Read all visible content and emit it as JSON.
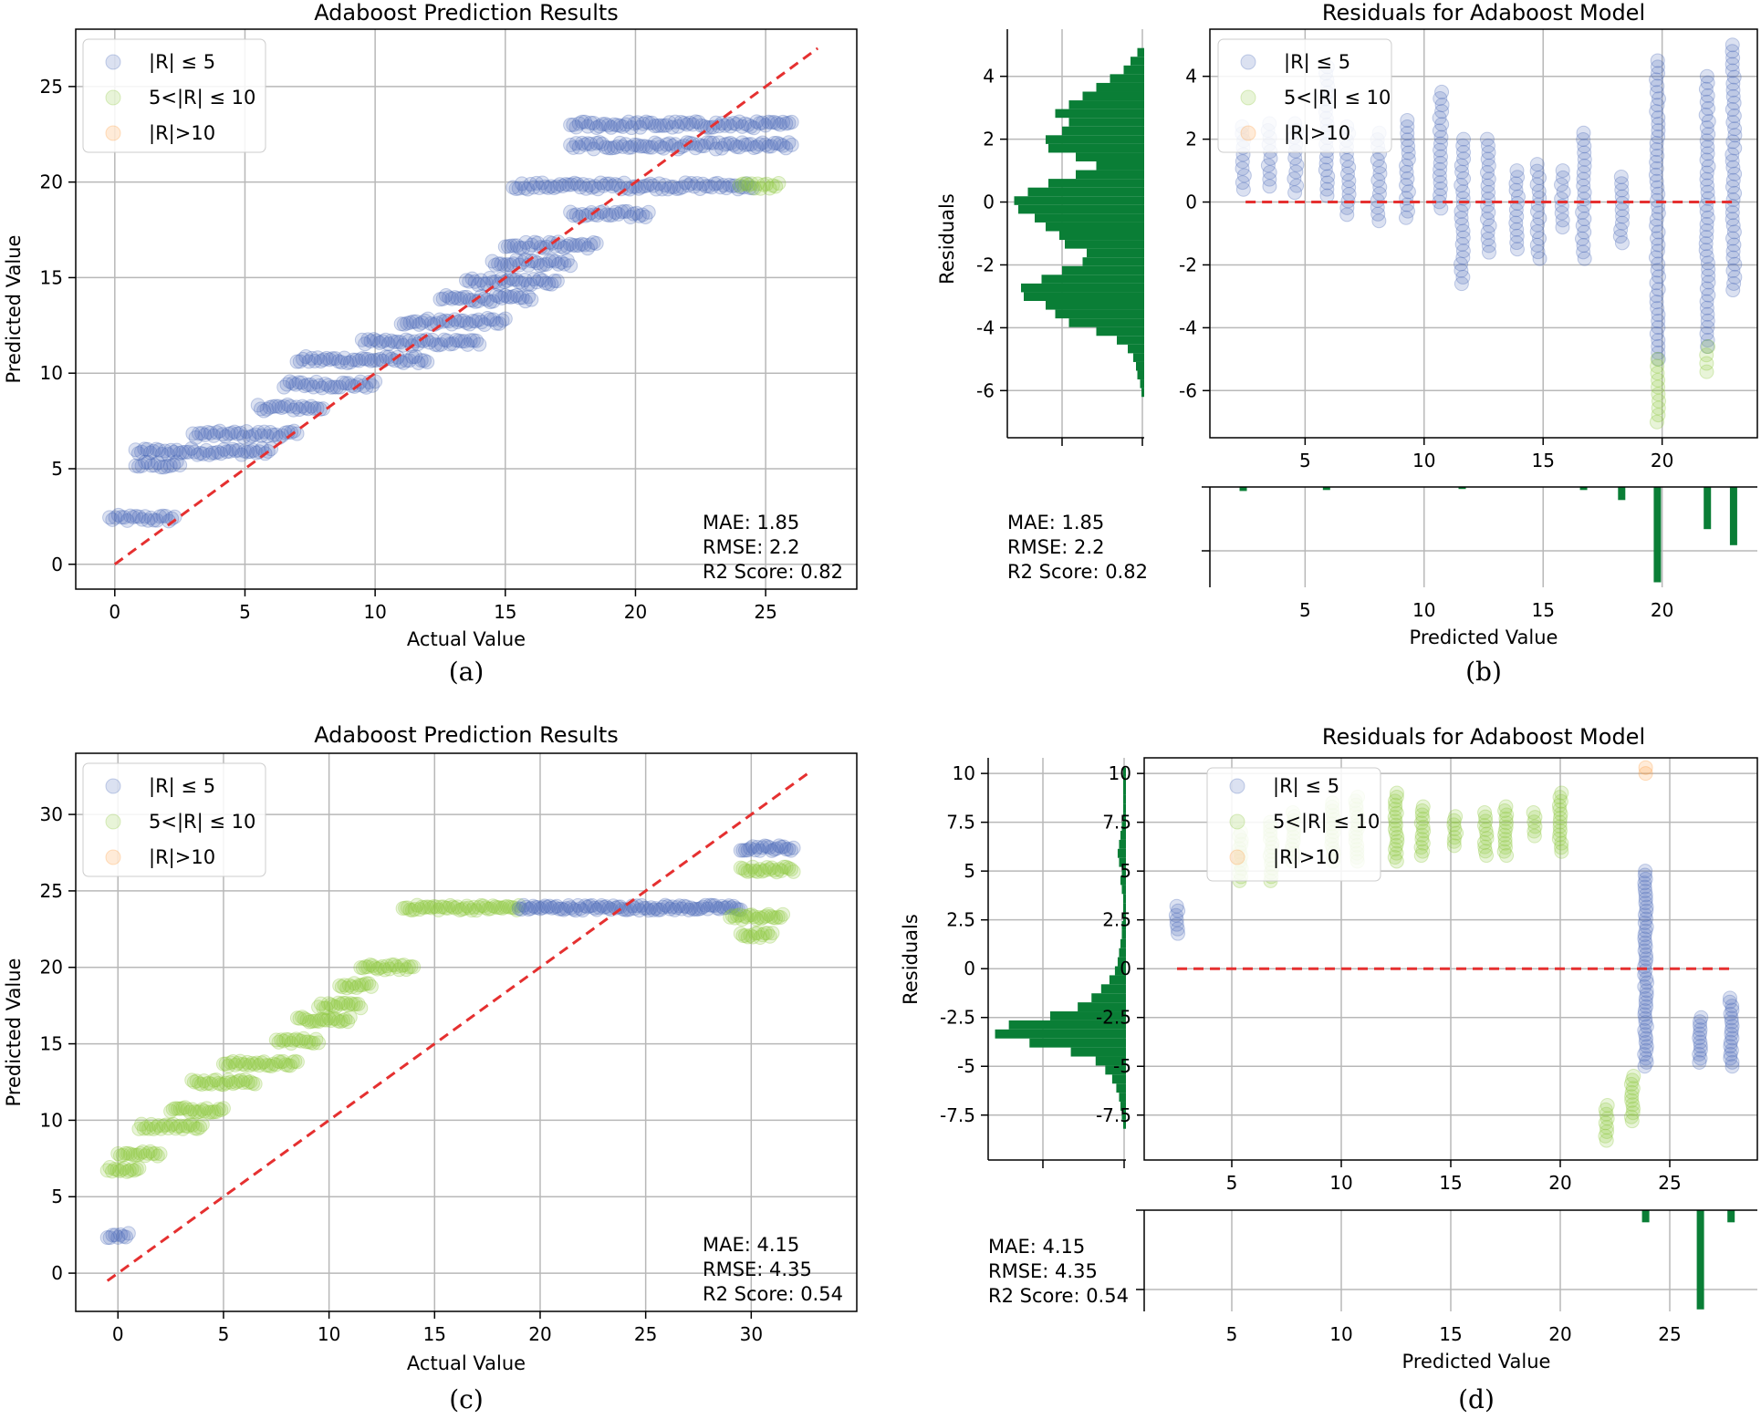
{
  "colors": {
    "low": "#4a6ab8",
    "mid": "#8cc83c",
    "high": "#ff9b3b",
    "ideal": "#e53030",
    "hist": "#0a7e36",
    "grid": "#b8b8b8"
  },
  "legend": [
    "|R| ≤ 5",
    "5<|R| ≤ 10",
    "|R|>10"
  ],
  "panels": [
    {
      "caption": "(a)",
      "title": "Adaboost Prediction Results",
      "xlabel": "Actual Value",
      "ylabel": "Predicted Value",
      "metrics": [
        "MAE: 1.85",
        "RMSE: 2.2",
        "R2 Score: 0.82"
      ]
    },
    {
      "caption": "(b)",
      "title": "Residuals for Adaboost Model",
      "xlabel": "Predicted Value",
      "ylabel": "Residuals",
      "metrics": [
        "MAE: 1.85",
        "RMSE: 2.2",
        "R2 Score: 0.82"
      ]
    },
    {
      "caption": "(c)",
      "title": "Adaboost Prediction Results",
      "xlabel": "Actual Value",
      "ylabel": "Predicted Value",
      "metrics": [
        "MAE: 4.15",
        "RMSE: 4.35",
        "R2 Score: 0.54"
      ]
    },
    {
      "caption": "(d)",
      "title": "Residuals for Adaboost Model",
      "xlabel": "Predicted Value",
      "ylabel": "Residuals",
      "metrics": [
        "MAE: 4.15",
        "RMSE: 4.35",
        "R2 Score: 0.54"
      ]
    }
  ],
  "chart_data": [
    {
      "type": "scatter",
      "title": "Adaboost Prediction Results",
      "xlabel": "Actual Value",
      "ylabel": "Predicted Value",
      "xlim": [
        -1.5,
        28.5
      ],
      "ylim": [
        -1.3,
        28
      ],
      "xticks": [
        0,
        5,
        10,
        15,
        20,
        25
      ],
      "yticks": [
        0,
        5,
        10,
        15,
        20,
        25
      ],
      "ideal_line": [
        [
          0,
          0
        ],
        [
          27,
          27
        ]
      ],
      "clusters": [
        {
          "x0": -0.2,
          "x1": 2.3,
          "y": 2.4,
          "cat": "low"
        },
        {
          "x0": 0.8,
          "x1": 2.5,
          "y": 5.2,
          "cat": "low"
        },
        {
          "x0": 0.8,
          "x1": 6.0,
          "y": 5.9,
          "cat": "low"
        },
        {
          "x0": 3.0,
          "x1": 7.0,
          "y": 6.8,
          "cat": "low"
        },
        {
          "x0": 5.5,
          "x1": 8.0,
          "y": 8.2,
          "cat": "low"
        },
        {
          "x0": 6.5,
          "x1": 10.0,
          "y": 9.4,
          "cat": "low"
        },
        {
          "x0": 7.0,
          "x1": 12.0,
          "y": 10.7,
          "cat": "low"
        },
        {
          "x0": 9.5,
          "x1": 14.0,
          "y": 11.6,
          "cat": "low"
        },
        {
          "x0": 11.0,
          "x1": 15.0,
          "y": 12.7,
          "cat": "low"
        },
        {
          "x0": 12.5,
          "x1": 16.0,
          "y": 13.9,
          "cat": "low"
        },
        {
          "x0": 13.5,
          "x1": 17.0,
          "y": 14.8,
          "cat": "low"
        },
        {
          "x0": 14.5,
          "x1": 17.5,
          "y": 15.8,
          "cat": "low"
        },
        {
          "x0": 15.0,
          "x1": 18.5,
          "y": 16.7,
          "cat": "low"
        },
        {
          "x0": 17.5,
          "x1": 20.5,
          "y": 18.3,
          "cat": "low"
        },
        {
          "x0": 15.3,
          "x1": 24.5,
          "y": 19.8,
          "cat": "low"
        },
        {
          "x0": 24.0,
          "x1": 25.5,
          "y": 19.8,
          "cat": "mid"
        },
        {
          "x0": 17.5,
          "x1": 26.0,
          "y": 21.9,
          "cat": "low"
        },
        {
          "x0": 17.5,
          "x1": 26.0,
          "y": 23.0,
          "cat": "low"
        }
      ]
    },
    {
      "type": "scatter+histogram",
      "title": "Residuals for Adaboost Model",
      "xlabel": "Predicted Value",
      "ylabel": "Residuals",
      "xlim": [
        1.0,
        24.0
      ],
      "ylim": [
        -7.5,
        5.5
      ],
      "xticks": [
        5,
        10,
        15,
        20
      ],
      "yticks": [
        -6,
        -4,
        -2,
        0,
        2,
        4
      ],
      "zero_line": [
        2.5,
        23.1
      ],
      "columns": [
        {
          "x": 2.4,
          "lo": 0.4,
          "hi": 2.4,
          "mid_lo": null
        },
        {
          "x": 3.5,
          "lo": 0.5,
          "hi": 2.5,
          "mid_lo": null
        },
        {
          "x": 4.6,
          "lo": 0.3,
          "hi": 2.5,
          "mid_lo": null
        },
        {
          "x": 5.9,
          "lo": 0.2,
          "hi": 4.3,
          "mid_lo": null
        },
        {
          "x": 6.8,
          "lo": -0.4,
          "hi": 2.4,
          "mid_lo": null
        },
        {
          "x": 8.1,
          "lo": -0.6,
          "hi": 2.2,
          "mid_lo": null
        },
        {
          "x": 9.3,
          "lo": -0.5,
          "hi": 2.6,
          "mid_lo": null
        },
        {
          "x": 10.7,
          "lo": -0.2,
          "hi": 3.5,
          "mid_lo": null
        },
        {
          "x": 11.6,
          "lo": -2.6,
          "hi": 2.0,
          "mid_lo": null
        },
        {
          "x": 12.7,
          "lo": -1.6,
          "hi": 2.0,
          "mid_lo": null
        },
        {
          "x": 13.9,
          "lo": -1.5,
          "hi": 1.0,
          "mid_lo": null
        },
        {
          "x": 14.8,
          "lo": -1.8,
          "hi": 1.2,
          "mid_lo": null
        },
        {
          "x": 15.8,
          "lo": -0.8,
          "hi": 1.0,
          "mid_lo": null
        },
        {
          "x": 16.7,
          "lo": -1.8,
          "hi": 2.2,
          "mid_lo": null
        },
        {
          "x": 18.3,
          "lo": -1.3,
          "hi": 0.8,
          "mid_lo": null
        },
        {
          "x": 19.8,
          "lo": -5.0,
          "hi": 4.5,
          "mid_lo": -7.0
        },
        {
          "x": 21.9,
          "lo": -4.6,
          "hi": 4.0,
          "mid_lo": -5.4
        },
        {
          "x": 23.0,
          "lo": -2.8,
          "hi": 5.0,
          "mid_lo": null
        }
      ],
      "metrics": {
        "MAE": 1.85,
        "RMSE": 2.2,
        "R2": 0.82
      }
    },
    {
      "type": "scatter",
      "title": "Adaboost Prediction Results",
      "xlabel": "Actual Value",
      "ylabel": "Predicted Value",
      "xlim": [
        -2,
        35
      ],
      "ylim": [
        -2.5,
        34
      ],
      "xticks": [
        0,
        5,
        10,
        15,
        20,
        25,
        30
      ],
      "yticks": [
        0,
        5,
        10,
        15,
        20,
        25,
        30
      ],
      "ideal_line": [
        [
          -0.5,
          -0.5
        ],
        [
          32.8,
          32.8
        ]
      ],
      "clusters": [
        {
          "x0": -0.5,
          "x1": 0.5,
          "y": 2.5,
          "cat": "low"
        },
        {
          "x0": -0.5,
          "x1": 1.0,
          "y": 6.8,
          "cat": "mid"
        },
        {
          "x0": 0.0,
          "x1": 2.0,
          "y": 7.8,
          "cat": "mid"
        },
        {
          "x0": 1.0,
          "x1": 4.0,
          "y": 9.6,
          "cat": "mid"
        },
        {
          "x0": 2.5,
          "x1": 5.0,
          "y": 10.7,
          "cat": "mid"
        },
        {
          "x0": 3.5,
          "x1": 6.5,
          "y": 12.5,
          "cat": "mid"
        },
        {
          "x0": 5.0,
          "x1": 8.5,
          "y": 13.7,
          "cat": "mid"
        },
        {
          "x0": 7.5,
          "x1": 9.5,
          "y": 15.2,
          "cat": "mid"
        },
        {
          "x0": 8.5,
          "x1": 11.0,
          "y": 16.6,
          "cat": "mid"
        },
        {
          "x0": 9.5,
          "x1": 11.5,
          "y": 17.5,
          "cat": "mid"
        },
        {
          "x0": 10.5,
          "x1": 12.0,
          "y": 18.8,
          "cat": "mid"
        },
        {
          "x0": 11.5,
          "x1": 14.0,
          "y": 20.0,
          "cat": "mid"
        },
        {
          "x0": 13.5,
          "x1": 19.0,
          "y": 23.9,
          "cat": "mid"
        },
        {
          "x0": 19.0,
          "x1": 29.5,
          "y": 23.9,
          "cat": "low"
        },
        {
          "x0": 29.0,
          "x1": 31.5,
          "y": 23.3,
          "cat": "mid"
        },
        {
          "x0": 29.5,
          "x1": 31.0,
          "y": 22.1,
          "cat": "mid"
        },
        {
          "x0": 29.5,
          "x1": 32.0,
          "y": 26.4,
          "cat": "mid"
        },
        {
          "x0": 29.5,
          "x1": 32.0,
          "y": 27.8,
          "cat": "low"
        }
      ]
    },
    {
      "type": "scatter+histogram",
      "title": "Residuals for Adaboost Model",
      "xlabel": "Predicted Value",
      "ylabel": "Residuals",
      "xlim": [
        1.0,
        29.0
      ],
      "ylim": [
        -9.8,
        10.8
      ],
      "xticks": [
        5,
        10,
        15,
        20,
        25
      ],
      "yticks": [
        -7.5,
        -5.0,
        -2.5,
        0.0,
        2.5,
        5.0,
        7.5,
        10.0
      ],
      "zero_line": [
        2.5,
        27.8
      ],
      "columns": [
        {
          "x": 2.5,
          "lo": 1.8,
          "hi": 3.2,
          "cat": "low"
        },
        {
          "x": 5.4,
          "lo": 4.5,
          "hi": 7.0,
          "cat": "mid"
        },
        {
          "x": 6.8,
          "lo": 4.5,
          "hi": 7.5,
          "cat": "mid"
        },
        {
          "x": 7.8,
          "lo": 5.5,
          "hi": 8.0,
          "cat": "mid"
        },
        {
          "x": 9.6,
          "lo": 5.5,
          "hi": 8.5,
          "cat": "mid"
        },
        {
          "x": 10.7,
          "lo": 5.5,
          "hi": 8.8,
          "cat": "mid"
        },
        {
          "x": 12.5,
          "lo": 5.5,
          "hi": 9.0,
          "cat": "mid"
        },
        {
          "x": 13.7,
          "lo": 5.8,
          "hi": 8.3,
          "cat": "mid"
        },
        {
          "x": 15.2,
          "lo": 6.3,
          "hi": 7.8,
          "cat": "mid"
        },
        {
          "x": 16.6,
          "lo": 5.8,
          "hi": 8.0,
          "cat": "mid"
        },
        {
          "x": 17.5,
          "lo": 5.8,
          "hi": 8.3,
          "cat": "mid"
        },
        {
          "x": 18.8,
          "lo": 6.8,
          "hi": 8.0,
          "cat": "mid"
        },
        {
          "x": 20.0,
          "lo": 6.0,
          "hi": 9.0,
          "cat": "mid"
        },
        {
          "x": 22.1,
          "lo": -8.8,
          "hi": -7.0,
          "cat": "mid"
        },
        {
          "x": 23.3,
          "lo": -7.8,
          "hi": -5.5,
          "cat": "mid"
        },
        {
          "x": 23.9,
          "lo": -5.0,
          "hi": 5.0,
          "cat": "low"
        },
        {
          "x": 26.4,
          "lo": -4.8,
          "hi": -2.5,
          "cat": "low"
        },
        {
          "x": 27.8,
          "lo": -5.0,
          "hi": -1.5,
          "cat": "low"
        }
      ],
      "metrics": {
        "MAE": 4.15,
        "RMSE": 4.35,
        "R2": 0.54
      }
    }
  ]
}
